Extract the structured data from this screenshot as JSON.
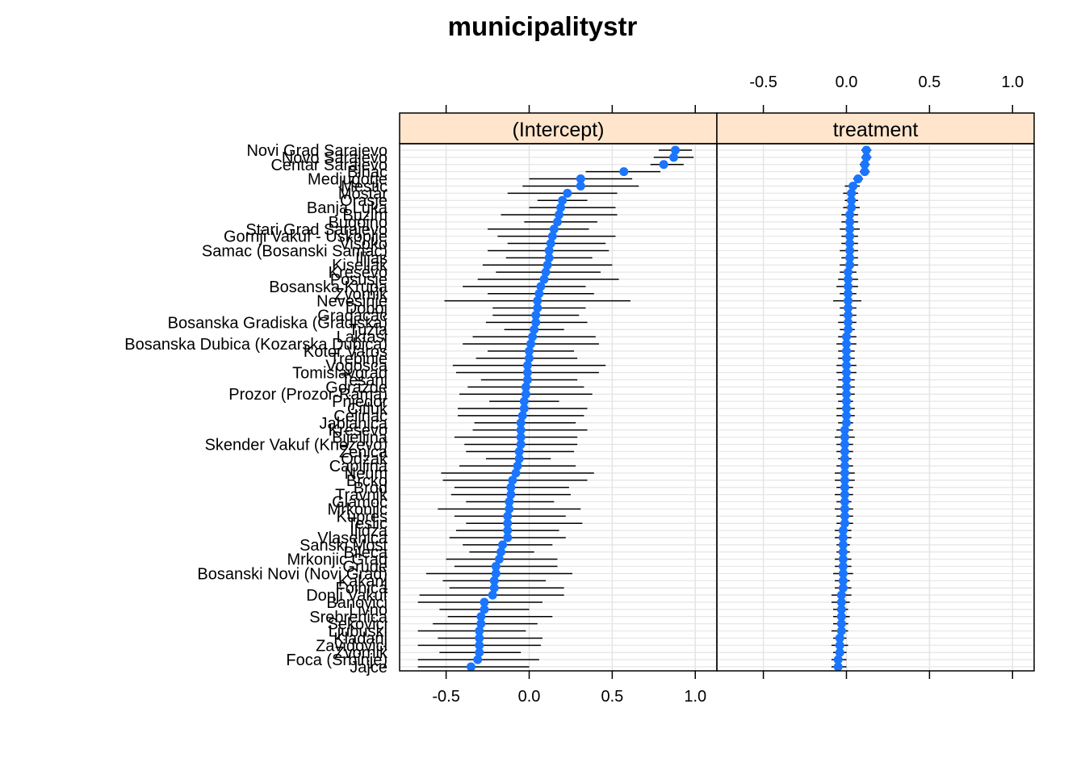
{
  "chart_data": {
    "type": "dotplot",
    "title": "municipalitystr",
    "xlim": [
      -0.78,
      1.13
    ],
    "ticks": [
      -0.5,
      0.0,
      0.5,
      1.0
    ],
    "tick_labels": [
      "-0.5",
      "0.0",
      "0.5",
      "1.0"
    ],
    "panels": [
      "(Intercept)",
      "treatment"
    ],
    "grid": true,
    "colors": {
      "point": "#1a75ff",
      "strip": "#ffe5cc",
      "grid": "#e5e5e5",
      "line": "#000000"
    },
    "row_labels": [
      "Novi Grad Sarajevo",
      "Novo Sarajevo",
      "Centar Sarajevo",
      "Bihac",
      "Medjugorje",
      "Mestic",
      "Mostar",
      "Orasje",
      "Banja Luka",
      "Buzim",
      "Bugojno",
      "Stari Grad Sarajevo",
      "Gornji Vakuf - Uskoplje",
      "Visoko",
      "Samac (Bosanski Samac)",
      "Ilijas",
      "Kiseljak",
      "Kresevo",
      "Posusje",
      "Bosanska Krupa",
      "Zvornik",
      "Nevesinje",
      "Doboj",
      "Gradacac",
      "Bosanska Gradiska (Gradiska)",
      "Tuzla",
      "Laktasi",
      "Bosanska Dubica (Kozarska Dubica)",
      "Kotor Varos",
      "Trebinje",
      "Vogosca",
      "Tomislavgrad",
      "Tesanj",
      "Gorazde",
      "Prozor (Prozor-Rama)",
      "Prijedor",
      "Citluk",
      "Celinac",
      "Jablanica",
      "Kresevo 2",
      "Bijeljina",
      "Skender Vakuf (Knezevo)",
      "Zenica",
      "Odzak",
      "Capljina",
      "Neum",
      "Brcko",
      "Brod",
      "Travnik",
      "Glamoc",
      "Mrkonjic",
      "Kupres",
      "Teslic",
      "Ilidza",
      "Vlasenica",
      "Sanski Most",
      "Bileca",
      "Mrkonjic Grad",
      "Grude",
      "Bosanski Novi (Novi Grad)",
      "Kakanj",
      "Foinica",
      "Donji Vakuf",
      "Banovici",
      "Livno",
      "Srebrenica",
      "Sekovici",
      "Ljubuski",
      "Kladanj",
      "Zavidovici",
      "Zvornik 2",
      "Foca (Srbinje)",
      "Jajce"
    ],
    "display_labels": [
      "Novi Grad Sarajevo",
      "Novo Sarajevo",
      "Centar Sarajevo",
      "Bihac",
      "Medjugorje",
      "Mestic",
      "Mostar",
      "Orasje",
      "Banja Luka",
      "Buzim",
      "Bugojno",
      "Stari Grad Sarajevo",
      "Gornji Vakuf - Uskoplje",
      "Visoko",
      "Samac (Bosanski Samac)",
      "Ilijas",
      "Kiseljak",
      "Kresevo",
      "Posusje",
      "Bosanska Krupa",
      "Zvornik",
      "Nevesinje",
      "Doboj",
      "Gradacac",
      "Bosanska Gradiska (Gradiska)",
      "Tuzla",
      "Laktasi",
      "Bosanska Dubica (Kozarska Dubica)",
      "Kotor Varos",
      "Trebinje",
      "Vogosca",
      "Tomislavgrad",
      "Tesanj",
      "Gorazde",
      "Prozor (Prozor-Rama)",
      "Prijedor",
      "Citluk",
      "Celinac",
      "Jablanica",
      "Kresevo",
      "Bijeljina",
      "Skender Vakuf (Knezevo)",
      "Zenica",
      "Odzak",
      "Capljina",
      "Neum",
      "Brcko",
      "Brod",
      "Travnik",
      "Glamoc",
      "Mrkonjic",
      "Kupres",
      "Teslic",
      "Ilidza",
      "Vlasenica",
      "Sanski Most",
      "Bileca",
      "Mrkonjic Grad",
      "Grude",
      "Bosanski Novi (Novi Grad)",
      "Kakanj",
      "Foinica",
      "Donji Vakuf",
      "Banovici",
      "Livno",
      "Srebrenica",
      "Sekovici",
      "Ljubuski",
      "Kladanj",
      "Zavidovici",
      "Zvornik",
      "Foca (Srbinje)",
      "Jajce"
    ],
    "series": [
      {
        "name": "(Intercept)",
        "estimates": [
          0.88,
          0.87,
          0.81,
          0.57,
          0.31,
          0.31,
          0.23,
          0.2,
          0.19,
          0.18,
          0.17,
          0.15,
          0.14,
          0.13,
          0.12,
          0.12,
          0.11,
          0.1,
          0.09,
          0.07,
          0.06,
          0.05,
          0.05,
          0.04,
          0.04,
          0.03,
          0.02,
          0.01,
          0.0,
          0.0,
          -0.01,
          -0.01,
          -0.01,
          -0.02,
          -0.02,
          -0.03,
          -0.03,
          -0.04,
          -0.05,
          -0.05,
          -0.05,
          -0.05,
          -0.06,
          -0.06,
          -0.07,
          -0.08,
          -0.1,
          -0.11,
          -0.11,
          -0.12,
          -0.12,
          -0.13,
          -0.13,
          -0.13,
          -0.13,
          -0.16,
          -0.17,
          -0.18,
          -0.2,
          -0.2,
          -0.21,
          -0.21,
          -0.22,
          -0.27,
          -0.27,
          -0.29,
          -0.29,
          -0.3,
          -0.3,
          -0.3,
          -0.3,
          -0.31,
          -0.35
        ],
        "lower": [
          0.78,
          0.75,
          0.73,
          0.34,
          0.0,
          -0.04,
          -0.13,
          0.05,
          0.0,
          -0.17,
          -0.03,
          -0.25,
          -0.19,
          -0.13,
          -0.25,
          -0.14,
          -0.28,
          -0.2,
          -0.31,
          -0.4,
          -0.25,
          -0.51,
          -0.22,
          -0.22,
          -0.26,
          -0.15,
          -0.34,
          -0.4,
          -0.25,
          -0.32,
          -0.46,
          -0.44,
          -0.29,
          -0.37,
          -0.42,
          -0.24,
          -0.43,
          -0.43,
          -0.33,
          -0.34,
          -0.45,
          -0.39,
          -0.38,
          -0.26,
          -0.42,
          -0.53,
          -0.52,
          -0.45,
          -0.47,
          -0.38,
          -0.55,
          -0.45,
          -0.38,
          -0.44,
          -0.48,
          -0.4,
          -0.36,
          -0.5,
          -0.45,
          -0.62,
          -0.52,
          -0.48,
          -0.66,
          -0.67,
          -0.54,
          -0.49,
          -0.58,
          -0.67,
          -0.55,
          -0.67,
          -0.54,
          -0.67,
          -0.67
        ],
        "upper": [
          0.98,
          0.99,
          0.93,
          0.79,
          0.62,
          0.66,
          0.53,
          0.35,
          0.52,
          0.53,
          0.41,
          0.36,
          0.52,
          0.46,
          0.48,
          0.38,
          0.5,
          0.43,
          0.54,
          0.34,
          0.39,
          0.61,
          0.34,
          0.3,
          0.35,
          0.21,
          0.4,
          0.42,
          0.27,
          0.29,
          0.46,
          0.42,
          0.29,
          0.33,
          0.38,
          0.18,
          0.35,
          0.33,
          0.28,
          0.35,
          0.29,
          0.29,
          0.27,
          0.13,
          0.28,
          0.39,
          0.35,
          0.24,
          0.25,
          0.15,
          0.31,
          0.22,
          0.32,
          0.18,
          0.22,
          0.14,
          0.03,
          0.17,
          0.17,
          0.26,
          0.1,
          0.21,
          0.21,
          0.08,
          0.0,
          0.14,
          0.05,
          -0.02,
          0.08,
          0.07,
          -0.05,
          0.06,
          0.0
        ]
      },
      {
        "name": "treatment",
        "estimates": [
          0.12,
          0.12,
          0.11,
          0.11,
          0.07,
          0.04,
          0.03,
          0.03,
          0.03,
          0.02,
          0.02,
          0.02,
          0.02,
          0.02,
          0.02,
          0.02,
          0.02,
          0.01,
          0.01,
          0.01,
          0.01,
          0.01,
          0.01,
          0.01,
          0.01,
          0.01,
          0.0,
          0.0,
          0.0,
          0.0,
          0.0,
          0.0,
          0.0,
          0.0,
          0.0,
          0.0,
          0.0,
          0.0,
          0.0,
          -0.01,
          -0.01,
          -0.01,
          -0.01,
          -0.01,
          -0.01,
          -0.01,
          -0.01,
          -0.01,
          -0.01,
          -0.01,
          -0.01,
          -0.01,
          -0.01,
          -0.02,
          -0.02,
          -0.02,
          -0.02,
          -0.02,
          -0.02,
          -0.02,
          -0.02,
          -0.02,
          -0.03,
          -0.03,
          -0.03,
          -0.03,
          -0.03,
          -0.03,
          -0.04,
          -0.04,
          -0.04,
          -0.05,
          -0.05
        ],
        "lower": [
          0.09,
          0.09,
          0.08,
          0.08,
          0.04,
          -0.01,
          -0.02,
          -0.01,
          -0.02,
          -0.03,
          -0.03,
          -0.04,
          -0.03,
          -0.03,
          -0.04,
          -0.03,
          -0.04,
          -0.04,
          -0.05,
          -0.06,
          -0.04,
          -0.08,
          -0.04,
          -0.04,
          -0.05,
          -0.04,
          -0.05,
          -0.06,
          -0.05,
          -0.05,
          -0.06,
          -0.06,
          -0.05,
          -0.06,
          -0.06,
          -0.05,
          -0.06,
          -0.06,
          -0.05,
          -0.06,
          -0.07,
          -0.06,
          -0.06,
          -0.05,
          -0.06,
          -0.07,
          -0.07,
          -0.06,
          -0.07,
          -0.06,
          -0.07,
          -0.06,
          -0.06,
          -0.07,
          -0.07,
          -0.06,
          -0.06,
          -0.07,
          -0.07,
          -0.08,
          -0.07,
          -0.07,
          -0.09,
          -0.09,
          -0.08,
          -0.08,
          -0.08,
          -0.09,
          -0.08,
          -0.09,
          -0.08,
          -0.09,
          -0.09
        ],
        "upper": [
          0.15,
          0.15,
          0.14,
          0.14,
          0.1,
          0.08,
          0.07,
          0.07,
          0.08,
          0.07,
          0.07,
          0.08,
          0.07,
          0.07,
          0.07,
          0.07,
          0.07,
          0.06,
          0.07,
          0.07,
          0.06,
          0.09,
          0.06,
          0.06,
          0.06,
          0.05,
          0.06,
          0.06,
          0.05,
          0.05,
          0.06,
          0.06,
          0.05,
          0.05,
          0.05,
          0.04,
          0.05,
          0.05,
          0.04,
          0.04,
          0.05,
          0.04,
          0.04,
          0.03,
          0.04,
          0.05,
          0.05,
          0.04,
          0.04,
          0.03,
          0.04,
          0.04,
          0.04,
          0.03,
          0.03,
          0.02,
          0.02,
          0.03,
          0.03,
          0.04,
          0.02,
          0.03,
          0.03,
          0.02,
          0.01,
          0.02,
          0.01,
          0.01,
          0.0,
          0.01,
          0.0,
          0.0,
          0.0
        ]
      }
    ]
  }
}
